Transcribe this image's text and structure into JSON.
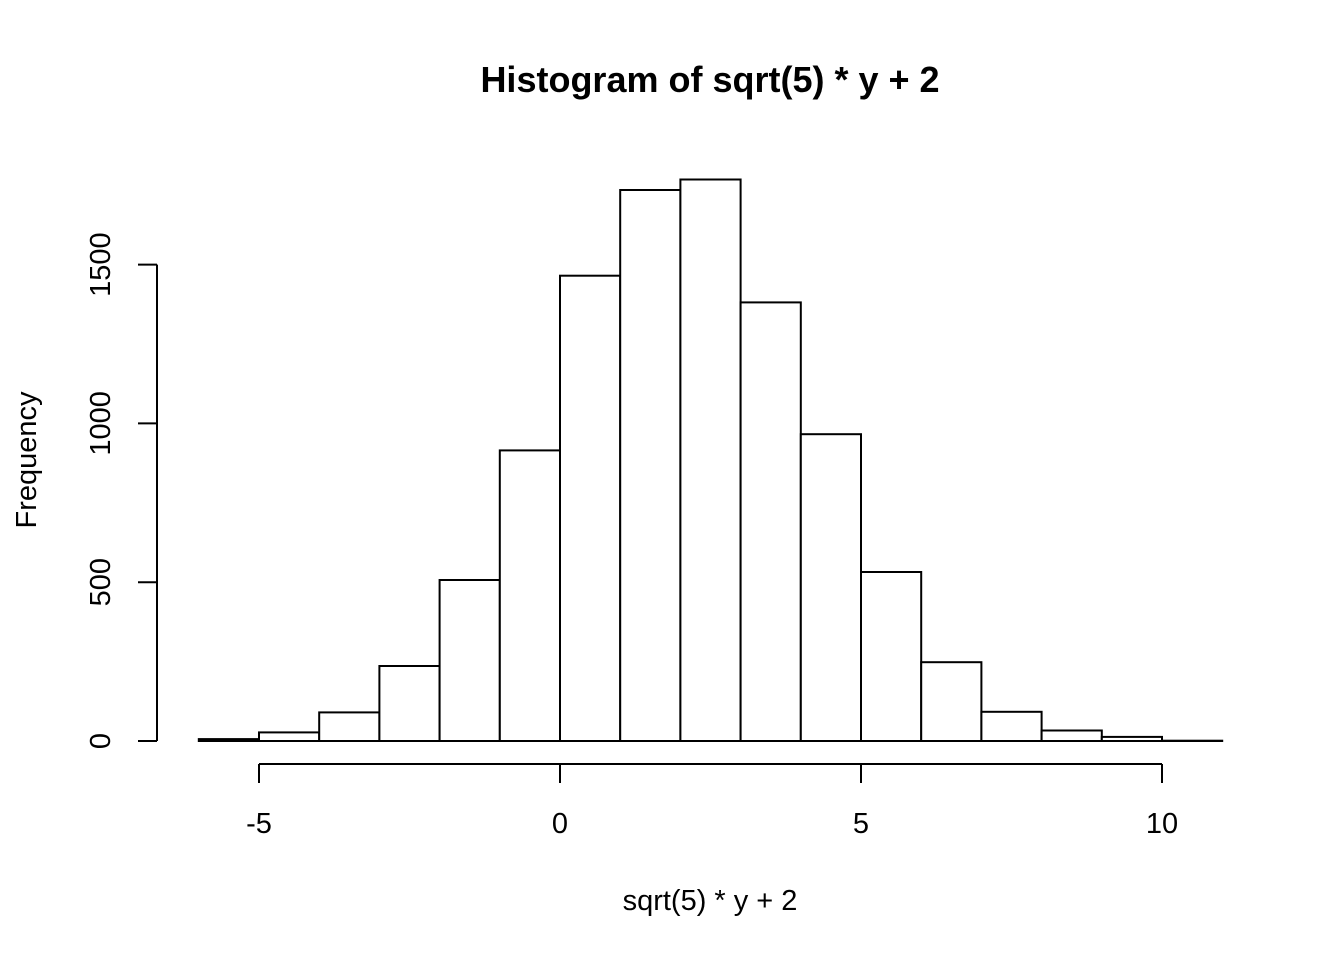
{
  "chart_data": {
    "type": "bar",
    "title": "Histogram of sqrt(5) * y + 2",
    "xlabel": "sqrt(5) * y + 2",
    "ylabel": "Frequency",
    "bin_edges": [
      -6,
      -5,
      -4,
      -3,
      -2,
      -1,
      0,
      1,
      2,
      3,
      4,
      5,
      6,
      7,
      8,
      9,
      10,
      11
    ],
    "values": [
      6,
      27,
      90,
      236,
      507,
      915,
      1465,
      1735,
      1768,
      1381,
      966,
      532,
      248,
      92,
      33,
      13,
      1
    ],
    "xlim": [
      -6,
      11
    ],
    "ylim": [
      0,
      1768
    ],
    "x_ticks": [
      -5,
      0,
      5,
      10
    ],
    "x_tick_labels": [
      "-5",
      "0",
      "5",
      "10"
    ],
    "y_ticks": [
      0,
      500,
      1000,
      1500
    ],
    "y_tick_labels": [
      "0",
      "500",
      "1000",
      "1500"
    ],
    "grid": false,
    "legend": "none",
    "bar_fill": "#ffffff",
    "bar_stroke": "#000000"
  }
}
